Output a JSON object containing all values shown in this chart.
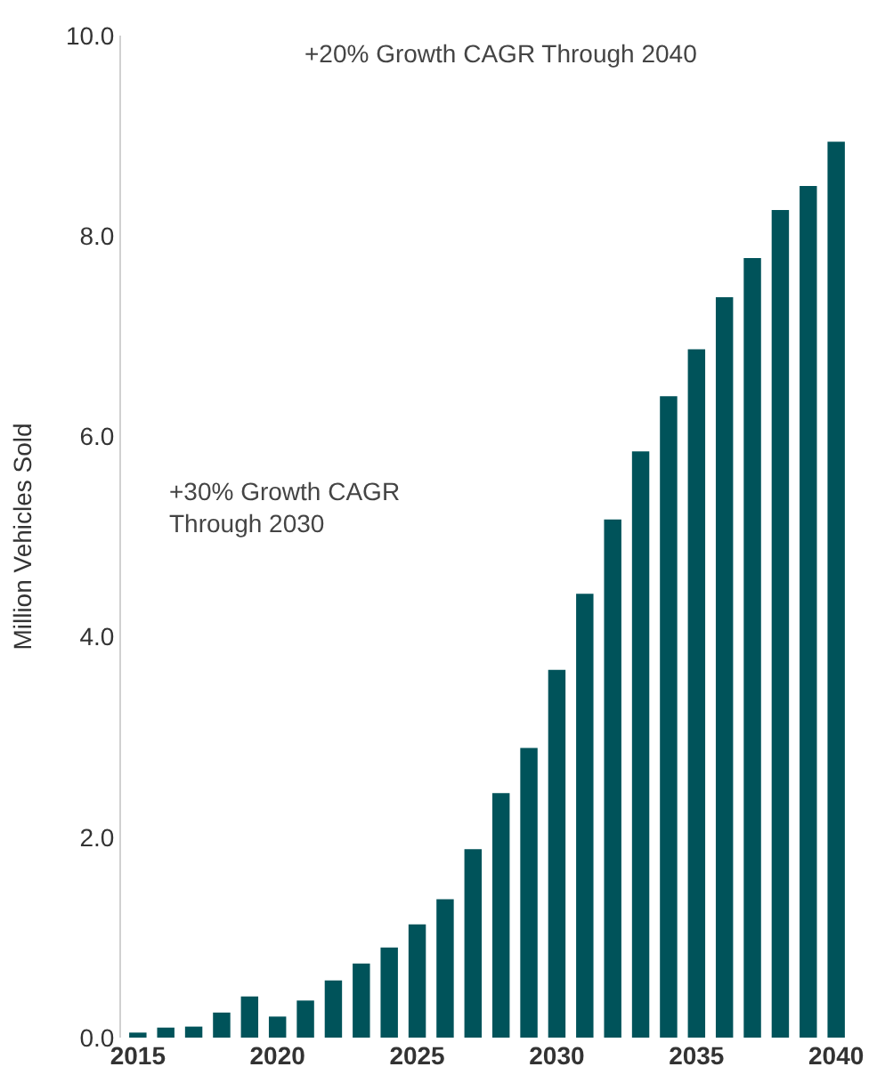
{
  "chart_data": {
    "type": "bar",
    "ylabel": "Million Vehicles Sold",
    "annotations": [
      "+20% Growth CAGR Through 2040",
      "+30% Growth CAGR\nThrough 2030"
    ],
    "x": [
      2015,
      2016,
      2017,
      2018,
      2019,
      2020,
      2021,
      2022,
      2023,
      2024,
      2025,
      2026,
      2027,
      2028,
      2029,
      2030,
      2031,
      2032,
      2033,
      2034,
      2035,
      2036,
      2037,
      2038,
      2039,
      2040
    ],
    "values": [
      0.05,
      0.1,
      0.11,
      0.25,
      0.41,
      0.21,
      0.37,
      0.57,
      0.74,
      0.9,
      1.13,
      1.38,
      1.88,
      2.44,
      2.89,
      3.67,
      4.43,
      5.17,
      5.85,
      6.4,
      6.87,
      7.39,
      7.78,
      8.26,
      8.5,
      8.94
    ],
    "color": "#00535a",
    "xlim": [
      2014.4,
      2040.6
    ],
    "xticks": [
      2015,
      2020,
      2025,
      2030,
      2035,
      2040
    ],
    "ylim": [
      0,
      10
    ],
    "yticks": [
      {
        "value": 0,
        "label": "0.0"
      },
      {
        "value": 2,
        "label": "2.0"
      },
      {
        "value": 4,
        "label": "4.0"
      },
      {
        "value": 6,
        "label": "6.0"
      },
      {
        "value": 8,
        "label": "8.0"
      },
      {
        "value": 10,
        "label": "10.0"
      }
    ]
  }
}
